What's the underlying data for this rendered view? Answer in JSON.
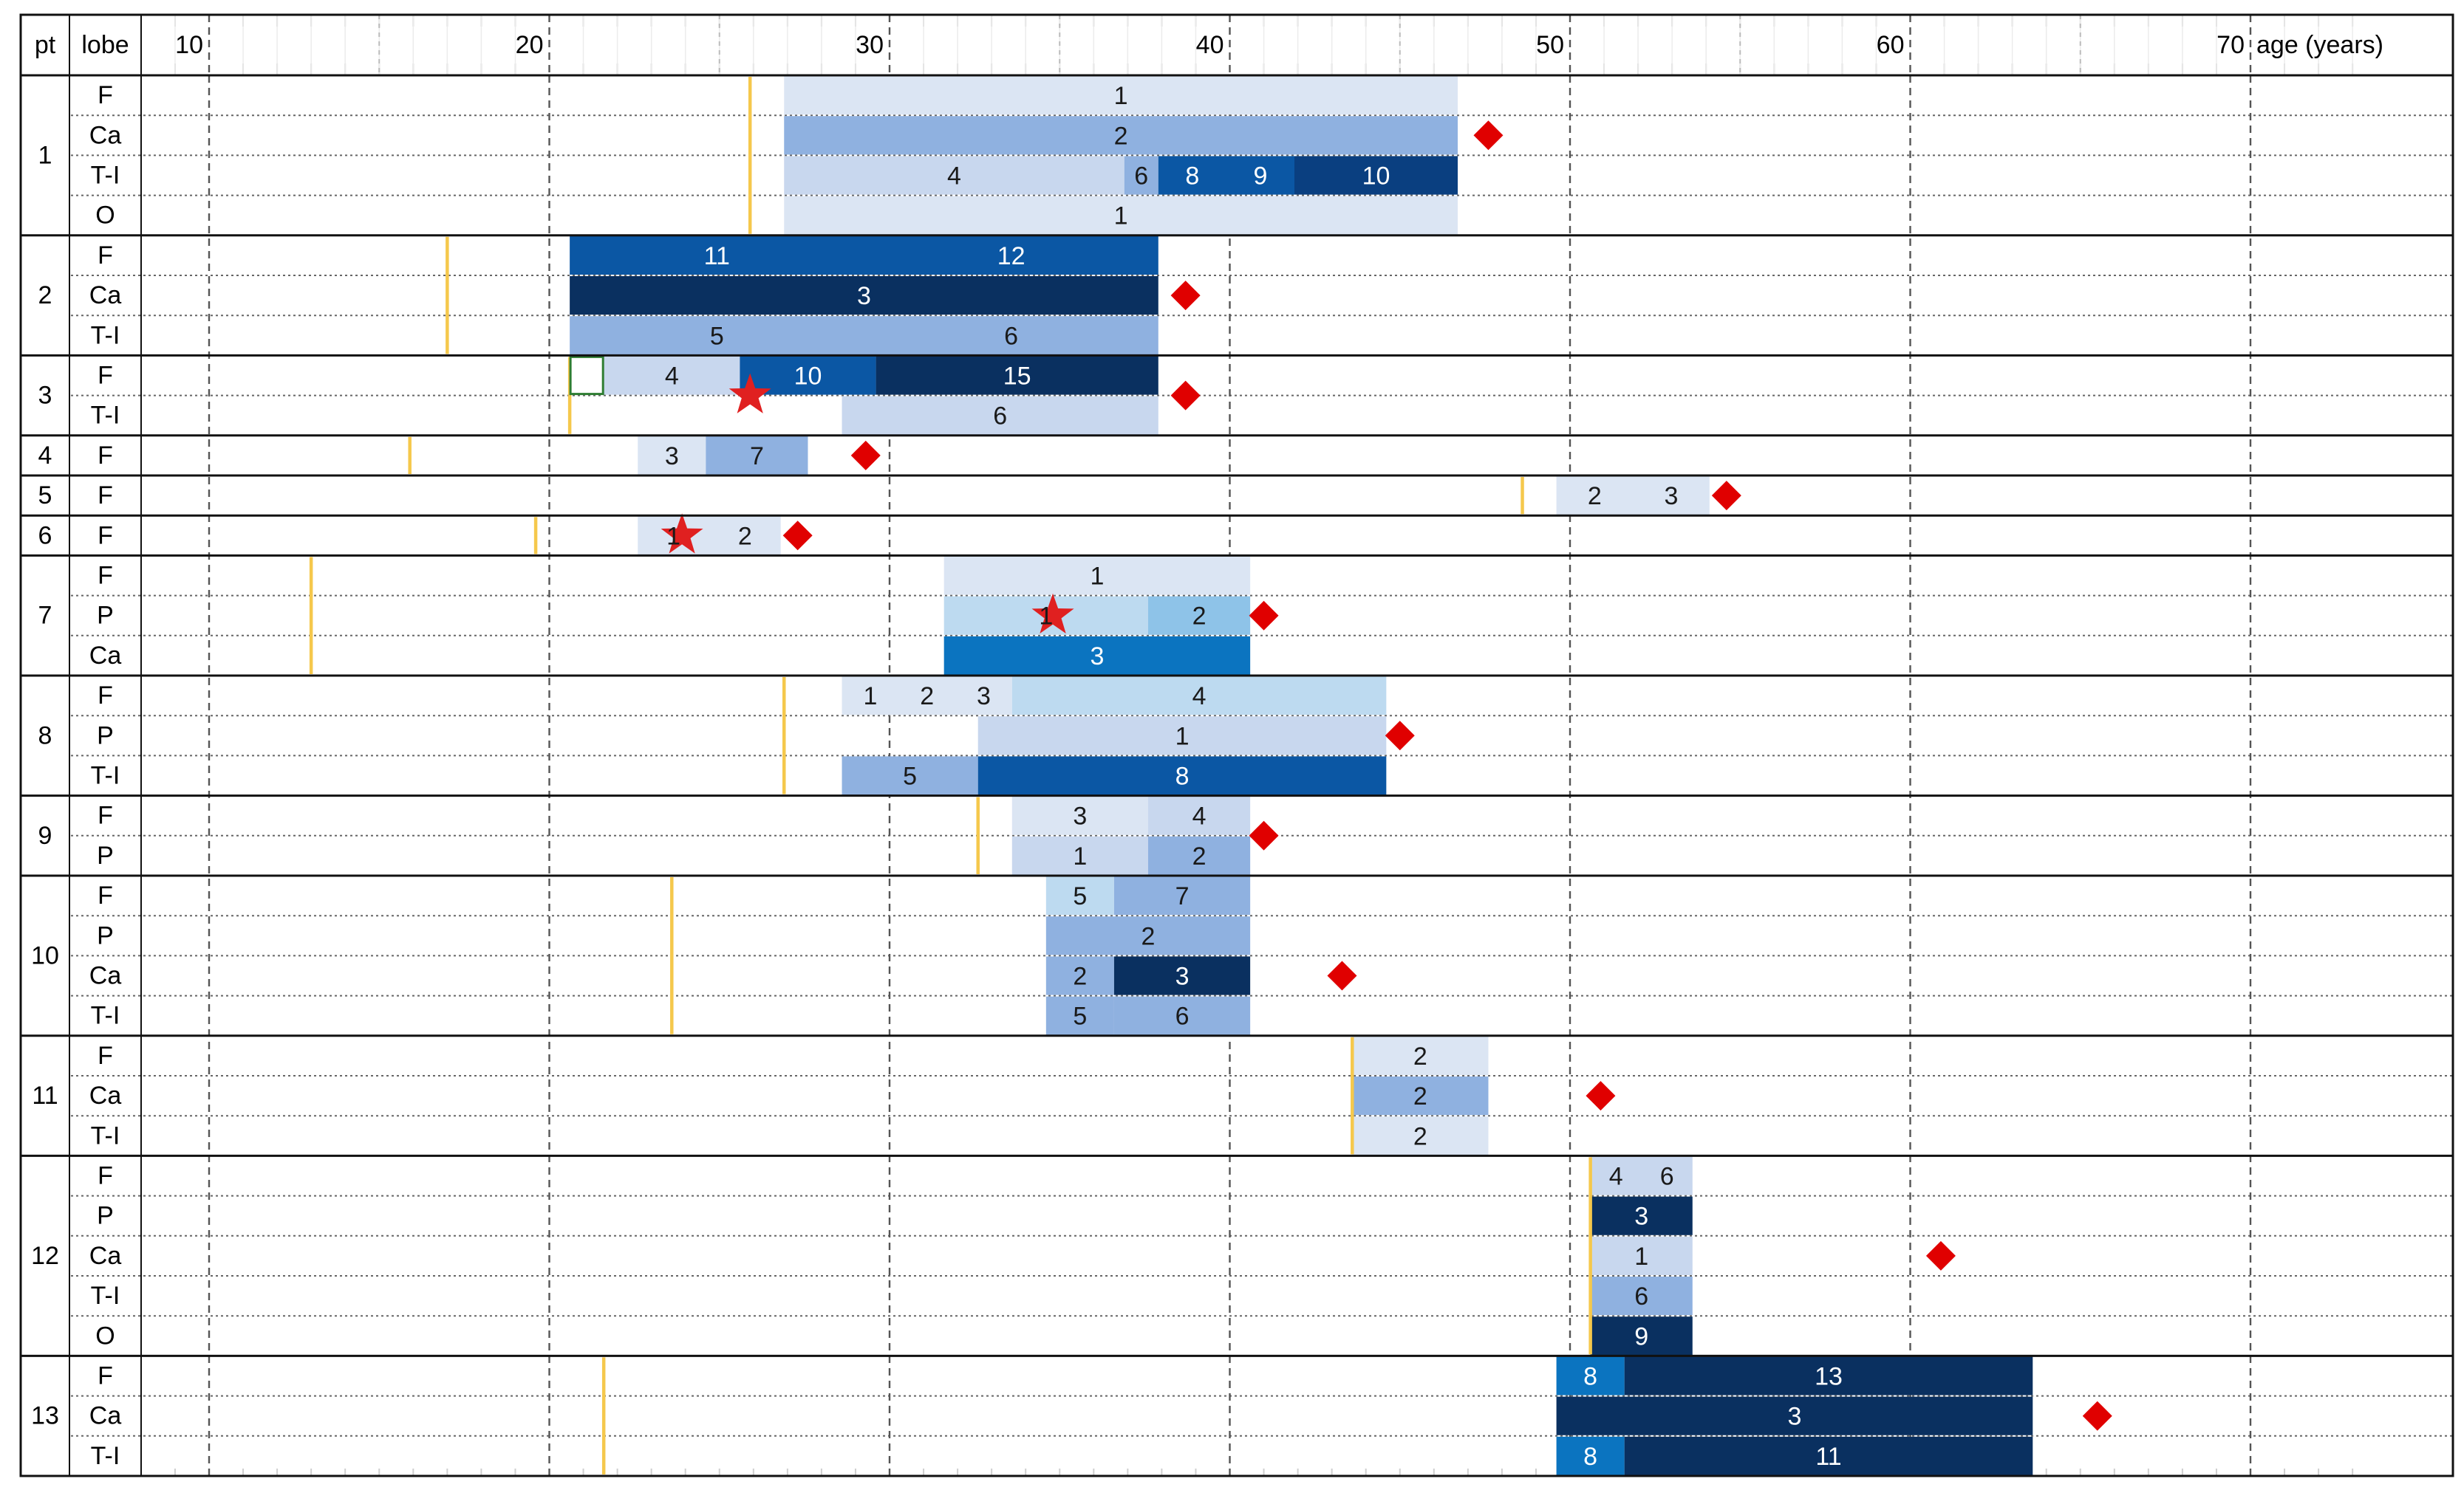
{
  "chart_data": {
    "type": "timeline",
    "header": {
      "pt": "pt",
      "lobe": "lobe",
      "axis_label": "age (years)"
    },
    "x_ticks": [
      10,
      20,
      30,
      40,
      50,
      60,
      70
    ],
    "xlim": [
      9,
      73
    ],
    "legend_colors": {
      "1": "#dbe5f3",
      "2": "#dbe5f3",
      "3": "#c8d7ee",
      "4": "#c8d7ee",
      "5": "#8fb1e0",
      "6": "#8fb1e0",
      "7": "#8fb1e0",
      "8": "#0b57a4",
      "9": "#0b57a4",
      "10": "#0a3f80",
      "11": "#0b57a4",
      "12": "#0b57a4",
      "13": "#0a3f80",
      "15": "#0a3f80"
    },
    "patients": [
      {
        "pt": "1",
        "onset": 25.9,
        "diamond": 47.6,
        "rows": [
          {
            "lobe": "F",
            "segments": [
              {
                "s": 26.9,
                "e": 46.7,
                "labels": [
                  "1"
                ],
                "c": "#dbe5f3"
              }
            ]
          },
          {
            "lobe": "Ca",
            "segments": [
              {
                "s": 26.9,
                "e": 46.7,
                "labels": [
                  "2"
                ],
                "c": "#8fb1e0"
              }
            ]
          },
          {
            "lobe": "T-I",
            "segments": [
              {
                "s": 26.9,
                "e": 36.9,
                "labels": [
                  "4"
                ],
                "c": "#c8d7ee"
              },
              {
                "s": 36.9,
                "e": 37.9,
                "labels": [
                  "6"
                ],
                "c": "#8fb1e0"
              },
              {
                "s": 37.9,
                "e": 41.9,
                "labels": [
                  "8",
                  "9"
                ],
                "c": "#0b57a4"
              },
              {
                "s": 41.9,
                "e": 46.7,
                "labels": [
                  "10"
                ],
                "c": "#0a3f80"
              }
            ]
          },
          {
            "lobe": "O",
            "segments": [
              {
                "s": 26.9,
                "e": 46.7,
                "labels": [
                  "1"
                ],
                "c": "#dbe5f3"
              }
            ]
          }
        ]
      },
      {
        "pt": "2",
        "onset": 17.0,
        "diamond": 38.7,
        "rows": [
          {
            "lobe": "F",
            "segments": [
              {
                "s": 20.6,
                "e": 37.9,
                "labels": [
                  "11",
                  "12"
                ],
                "c": "#0b57a4"
              }
            ]
          },
          {
            "lobe": "Ca",
            "segments": [
              {
                "s": 20.6,
                "e": 37.9,
                "labels": [
                  "3"
                ],
                "c": "#0a3060"
              }
            ]
          },
          {
            "lobe": "T-I",
            "segments": [
              {
                "s": 20.6,
                "e": 37.9,
                "labels": [
                  "5",
                  "6"
                ],
                "c": "#8fb1e0"
              }
            ]
          }
        ]
      },
      {
        "pt": "3",
        "onset": 20.6,
        "diamond": 38.7,
        "star": 25.9,
        "rows": [
          {
            "lobe": "F",
            "segments": [
              {
                "s": 21.6,
                "e": 25.6,
                "labels": [
                  "4"
                ],
                "c": "#c8d7ee"
              },
              {
                "s": 25.6,
                "e": 29.6,
                "labels": [
                  "10"
                ],
                "c": "#0b57a4"
              },
              {
                "s": 29.6,
                "e": 37.9,
                "labels": [
                  "15"
                ],
                "c": "#0a3060"
              }
            ]
          },
          {
            "lobe": "T-I",
            "segments": [
              {
                "s": 28.6,
                "e": 37.9,
                "labels": [
                  "6"
                ],
                "c": "#c8d7ee"
              }
            ]
          }
        ]
      },
      {
        "pt": "4",
        "onset": 15.9,
        "diamond": 29.3,
        "rows": [
          {
            "lobe": "F",
            "segments": [
              {
                "s": 22.6,
                "e": 24.6,
                "labels": [
                  "3"
                ],
                "c": "#dbe5f3"
              },
              {
                "s": 24.6,
                "e": 27.6,
                "labels": [
                  "7"
                ],
                "c": "#8fb1e0"
              }
            ]
          }
        ]
      },
      {
        "pt": "5",
        "onset": 48.6,
        "diamond": 54.6,
        "rows": [
          {
            "lobe": "F",
            "segments": [
              {
                "s": 49.6,
                "e": 54.1,
                "labels": [
                  "2",
                  "3"
                ],
                "c": "#dbe5f3"
              }
            ]
          }
        ]
      },
      {
        "pt": "6",
        "onset": 19.6,
        "diamond": 27.3,
        "star": 23.9,
        "rows": [
          {
            "lobe": "F",
            "segments": [
              {
                "s": 22.6,
                "e": 26.8,
                "labels": [
                  "1",
                  "2"
                ],
                "c": "#dbe5f3"
              }
            ]
          }
        ]
      },
      {
        "pt": "7",
        "onset": 13.0,
        "diamond": 41.0,
        "star": 34.8,
        "rows": [
          {
            "lobe": "F",
            "segments": [
              {
                "s": 31.6,
                "e": 40.6,
                "labels": [
                  "1"
                ],
                "c": "#dbe5f3"
              }
            ]
          },
          {
            "lobe": "P",
            "segments": [
              {
                "s": 31.6,
                "e": 37.6,
                "labels": [
                  "1"
                ],
                "c": "#bddaf0"
              },
              {
                "s": 37.6,
                "e": 40.6,
                "labels": [
                  "2"
                ],
                "c": "#8ec3e8"
              }
            ]
          },
          {
            "lobe": "Ca",
            "segments": [
              {
                "s": 31.6,
                "e": 40.6,
                "labels": [
                  "3"
                ],
                "c": "#0b74c0"
              }
            ]
          }
        ]
      },
      {
        "pt": "8",
        "onset": 26.9,
        "diamond": 45.0,
        "rows": [
          {
            "lobe": "F",
            "segments": [
              {
                "s": 28.6,
                "e": 33.6,
                "labels": [
                  "1",
                  "2",
                  "3"
                ],
                "c": "#dbe5f3"
              },
              {
                "s": 33.6,
                "e": 44.6,
                "labels": [
                  "4"
                ],
                "c": "#bddaf0"
              }
            ]
          },
          {
            "lobe": "P",
            "segments": [
              {
                "s": 32.6,
                "e": 44.6,
                "labels": [
                  "1"
                ],
                "c": "#c8d7ee"
              }
            ]
          },
          {
            "lobe": "T-I",
            "segments": [
              {
                "s": 28.6,
                "e": 32.6,
                "labels": [
                  "5"
                ],
                "c": "#8fb1e0"
              },
              {
                "s": 32.6,
                "e": 44.6,
                "labels": [
                  "8"
                ],
                "c": "#0b57a4"
              }
            ]
          }
        ]
      },
      {
        "pt": "9",
        "onset": 32.6,
        "diamond": 41.0,
        "rows": [
          {
            "lobe": "F",
            "segments": [
              {
                "s": 33.6,
                "e": 37.6,
                "labels": [
                  "3"
                ],
                "c": "#dbe5f3"
              },
              {
                "s": 37.6,
                "e": 40.6,
                "labels": [
                  "4"
                ],
                "c": "#c8d7ee"
              }
            ]
          },
          {
            "lobe": "P",
            "segments": [
              {
                "s": 33.6,
                "e": 37.6,
                "labels": [
                  "1"
                ],
                "c": "#c8d7ee"
              },
              {
                "s": 37.6,
                "e": 40.6,
                "labels": [
                  "2"
                ],
                "c": "#8fb1e0"
              }
            ]
          }
        ]
      },
      {
        "pt": "10",
        "onset": 23.6,
        "diamond": 43.3,
        "rows": [
          {
            "lobe": "F",
            "segments": [
              {
                "s": 34.6,
                "e": 36.6,
                "labels": [
                  "5"
                ],
                "c": "#bddaf0"
              },
              {
                "s": 36.6,
                "e": 40.6,
                "labels": [
                  "7"
                ],
                "c": "#8fb1e0"
              }
            ]
          },
          {
            "lobe": "P",
            "segments": [
              {
                "s": 34.6,
                "e": 40.6,
                "labels": [
                  "2"
                ],
                "c": "#8fb1e0"
              }
            ]
          },
          {
            "lobe": "Ca",
            "segments": [
              {
                "s": 34.6,
                "e": 36.6,
                "labels": [
                  "2"
                ],
                "c": "#8fb1e0"
              },
              {
                "s": 36.6,
                "e": 40.6,
                "labels": [
                  "3"
                ],
                "c": "#0a3060"
              }
            ]
          },
          {
            "lobe": "T-I",
            "segments": [
              {
                "s": 34.6,
                "e": 36.6,
                "labels": [
                  "5"
                ],
                "c": "#8fb1e0"
              },
              {
                "s": 36.6,
                "e": 40.6,
                "labels": [
                  "6"
                ],
                "c": "#8fb1e0"
              }
            ]
          }
        ]
      },
      {
        "pt": "11",
        "onset": 43.6,
        "diamond": 50.9,
        "rows": [
          {
            "lobe": "F",
            "segments": [
              {
                "s": 43.6,
                "e": 47.6,
                "labels": [
                  "2"
                ],
                "c": "#dbe5f3"
              }
            ]
          },
          {
            "lobe": "Ca",
            "segments": [
              {
                "s": 43.6,
                "e": 47.6,
                "labels": [
                  "2"
                ],
                "c": "#8fb1e0"
              }
            ]
          },
          {
            "lobe": "T-I",
            "segments": [
              {
                "s": 43.6,
                "e": 47.6,
                "labels": [
                  "2"
                ],
                "c": "#dbe5f3"
              }
            ]
          }
        ]
      },
      {
        "pt": "12",
        "onset": 50.6,
        "diamond": 60.9,
        "rows": [
          {
            "lobe": "F",
            "segments": [
              {
                "s": 50.6,
                "e": 53.6,
                "labels": [
                  "4",
                  "6"
                ],
                "c": "#c8d7ee"
              }
            ]
          },
          {
            "lobe": "P",
            "segments": [
              {
                "s": 50.6,
                "e": 53.6,
                "labels": [
                  "3"
                ],
                "c": "#0a3060"
              }
            ]
          },
          {
            "lobe": "Ca",
            "segments": [
              {
                "s": 50.6,
                "e": 53.6,
                "labels": [
                  "1"
                ],
                "c": "#c8d7ee"
              }
            ]
          },
          {
            "lobe": "T-I",
            "segments": [
              {
                "s": 50.6,
                "e": 53.6,
                "labels": [
                  "6"
                ],
                "c": "#8fb1e0"
              }
            ]
          },
          {
            "lobe": "O",
            "segments": [
              {
                "s": 50.6,
                "e": 53.6,
                "labels": [
                  "9"
                ],
                "c": "#0a3060"
              }
            ]
          }
        ]
      },
      {
        "pt": "13",
        "onset": 21.6,
        "diamond": 65.5,
        "rows": [
          {
            "lobe": "F",
            "segments": [
              {
                "s": 49.6,
                "e": 51.6,
                "labels": [
                  "8"
                ],
                "c": "#0b74c0"
              },
              {
                "s": 51.6,
                "e": 63.6,
                "labels": [
                  "13"
                ],
                "c": "#0a3060"
              }
            ]
          },
          {
            "lobe": "Ca",
            "segments": [
              {
                "s": 49.6,
                "e": 63.6,
                "labels": [
                  "3"
                ],
                "c": "#0a3060"
              }
            ]
          },
          {
            "lobe": "T-I",
            "segments": [
              {
                "s": 49.6,
                "e": 51.6,
                "labels": [
                  "8"
                ],
                "c": "#0b74c0"
              },
              {
                "s": 51.6,
                "e": 63.6,
                "labels": [
                  "11"
                ],
                "c": "#0a3060"
              }
            ]
          }
        ]
      }
    ],
    "colors": {
      "onset": "#f5c84c",
      "diamond": "#e00000",
      "star": "#e02020",
      "grid_major": "#555555",
      "grid_minor": "#cfcfcf"
    }
  }
}
